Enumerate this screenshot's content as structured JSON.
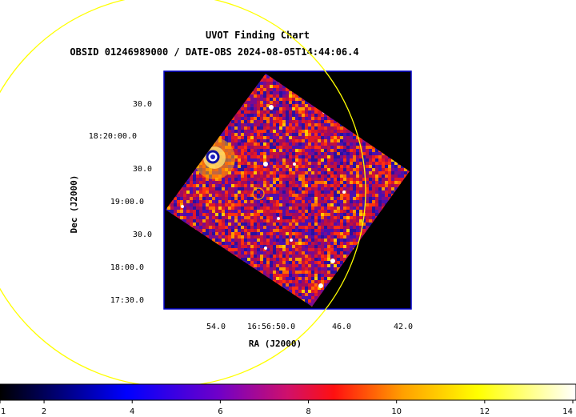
{
  "chart_data": {
    "type": "heatmap",
    "title": "UVOT Finding Chart",
    "subtitle": "OBSID 01246989000 / DATE-OBS 2024-08-05T14:44:06.4",
    "xlabel": "RA (J2000)",
    "ylabel": "Dec (J2000)",
    "x_ticks": [
      "54.0",
      "16:56:50.0",
      "46.0",
      "42.0"
    ],
    "y_ticks": [
      "30.0",
      "18:20:00.0",
      "30.0",
      "19:00.0",
      "30.0",
      "18:00.0",
      "17:30.0"
    ],
    "colorbar": {
      "ticks": [
        "1",
        "2",
        "4",
        "6",
        "8",
        "10",
        "12",
        "14"
      ],
      "range": [
        1,
        14
      ]
    },
    "colors": {
      "background": "#000000",
      "frame": "#0000cc",
      "error_circle": "#ffff00",
      "target_circle": "#ffa500"
    }
  }
}
